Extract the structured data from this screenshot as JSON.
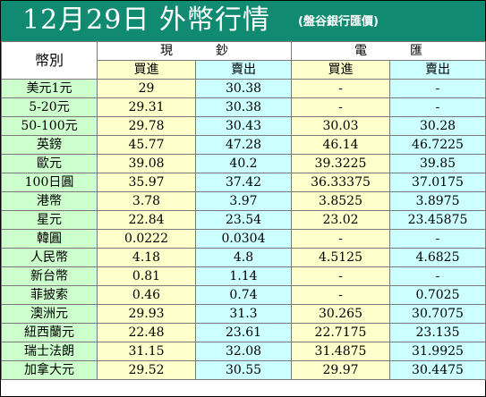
{
  "header": {
    "title": "12月29日 外幣行情",
    "subtitle": "(盤谷銀行匯價)"
  },
  "table": {
    "corner_label": "幣別",
    "group_cash": "現鈔",
    "group_wire": "電匯",
    "col_buy": "買進",
    "col_sell": "賣出",
    "rows": [
      {
        "currency": "美元1元",
        "cash_buy": "29",
        "cash_sell": "30.38",
        "wire_buy": "-",
        "wire_sell": "-"
      },
      {
        "currency": "5-20元",
        "cash_buy": "29.31",
        "cash_sell": "30.38",
        "wire_buy": "-",
        "wire_sell": "-"
      },
      {
        "currency": "50-100元",
        "cash_buy": "29.78",
        "cash_sell": "30.43",
        "wire_buy": "30.03",
        "wire_sell": "30.28"
      },
      {
        "currency": "英鎊",
        "cash_buy": "45.77",
        "cash_sell": "47.28",
        "wire_buy": "46.14",
        "wire_sell": "46.7225"
      },
      {
        "currency": "歐元",
        "cash_buy": "39.08",
        "cash_sell": "40.2",
        "wire_buy": "39.3225",
        "wire_sell": "39.85"
      },
      {
        "currency": "100日圓",
        "cash_buy": "35.97",
        "cash_sell": "37.42",
        "wire_buy": "36.33375",
        "wire_sell": "37.0175"
      },
      {
        "currency": "港幣",
        "cash_buy": "3.78",
        "cash_sell": "3.97",
        "wire_buy": "3.8525",
        "wire_sell": "3.8975"
      },
      {
        "currency": "星元",
        "cash_buy": "22.84",
        "cash_sell": "23.54",
        "wire_buy": "23.02",
        "wire_sell": "23.45875"
      },
      {
        "currency": "韓圓",
        "cash_buy": "0.0222",
        "cash_sell": "0.0304",
        "wire_buy": "-",
        "wire_sell": "-"
      },
      {
        "currency": "人民幣",
        "cash_buy": "4.18",
        "cash_sell": "4.8",
        "wire_buy": "4.5125",
        "wire_sell": "4.6825"
      },
      {
        "currency": "新台幣",
        "cash_buy": "0.81",
        "cash_sell": "1.14",
        "wire_buy": "-",
        "wire_sell": "-"
      },
      {
        "currency": "菲披索",
        "cash_buy": "0.46",
        "cash_sell": "0.74",
        "wire_buy": "-",
        "wire_sell": "0.7025"
      },
      {
        "currency": "澳洲元",
        "cash_buy": "29.93",
        "cash_sell": "31.3",
        "wire_buy": "30.265",
        "wire_sell": "30.7075"
      },
      {
        "currency": "紐西蘭元",
        "cash_buy": "22.48",
        "cash_sell": "23.61",
        "wire_buy": "22.7175",
        "wire_sell": "23.135"
      },
      {
        "currency": "瑞士法朗",
        "cash_buy": "31.15",
        "cash_sell": "32.08",
        "wire_buy": "31.4875",
        "wire_sell": "31.9925"
      },
      {
        "currency": "加拿大元",
        "cash_buy": "29.52",
        "cash_sell": "30.55",
        "wire_buy": "29.97",
        "wire_sell": "30.4475"
      }
    ]
  },
  "colors": {
    "header_bg": "#118a72",
    "name_bg": "#ccffcc",
    "buy_bg": "#ffffcc",
    "sell_bg": "#ccffff"
  }
}
